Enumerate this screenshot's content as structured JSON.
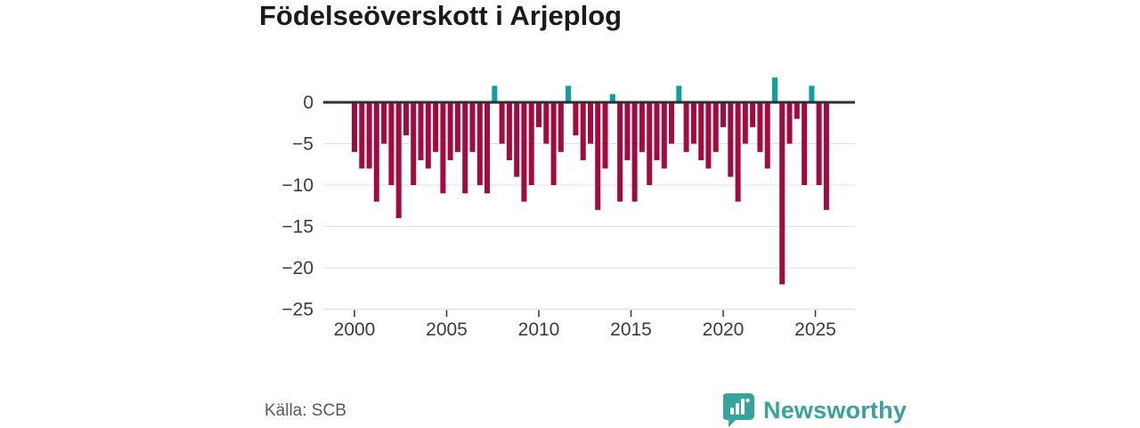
{
  "title": "Födelseöverskott i Arjeplog",
  "source": "Källa: SCB",
  "branding": {
    "name": "Newsworthy",
    "color": "#37a39c"
  },
  "colors": {
    "negative_bar": "#a6093d",
    "positive_bar": "#0aa2a0",
    "zero_axis": "#2e2e2e",
    "gridline": "#e0e0e0",
    "tick_mark": "#333333",
    "tick_label": "#3c3c3c",
    "source_text": "#595959",
    "background": "#ffffff",
    "title_text": "#1a1a1a"
  },
  "chart_data": {
    "type": "bar",
    "title": "Födelseöverskott i Arjeplog",
    "xlabel": "",
    "ylabel": "",
    "grid": true,
    "legend": false,
    "x_start": 2000.0,
    "x_step": 0.4,
    "xlim": [
      1998.3,
      2027.2
    ],
    "ylim": [
      -25,
      3.5
    ],
    "x_ticks": [
      {
        "value": 2000,
        "label": "2000"
      },
      {
        "value": 2005,
        "label": "2005"
      },
      {
        "value": 2010,
        "label": "2010"
      },
      {
        "value": 2015,
        "label": "2015"
      },
      {
        "value": 2020,
        "label": "2020"
      },
      {
        "value": 2025,
        "label": "2025"
      }
    ],
    "y_ticks": [
      {
        "value": 0,
        "label": "0"
      },
      {
        "value": -5,
        "label": "−5"
      },
      {
        "value": -10,
        "label": "−10"
      },
      {
        "value": -15,
        "label": "−15"
      },
      {
        "value": -20,
        "label": "−20"
      },
      {
        "value": -25,
        "label": "−25"
      }
    ],
    "values": [
      -6,
      -8,
      -8,
      -12,
      -5,
      -10,
      -14,
      -4,
      -10,
      -7,
      -8,
      -6,
      -11,
      -7,
      -6,
      -11,
      -6,
      -10,
      -11,
      2,
      -5,
      -7,
      -9,
      -12,
      -10,
      -3,
      -5,
      -10,
      -6,
      2,
      -4,
      -7,
      -5,
      -13,
      -8,
      1,
      -12,
      -7,
      -12,
      -6,
      -10,
      -7,
      -8,
      -5,
      2,
      -6,
      -5,
      -7,
      -8,
      -6,
      -3,
      -9,
      -12,
      -5,
      -3,
      -6,
      -8,
      3,
      -22,
      -5,
      -2,
      -10,
      2,
      -10,
      -13
    ]
  }
}
